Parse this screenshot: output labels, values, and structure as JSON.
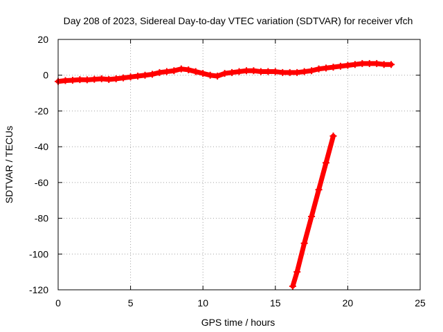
{
  "chart_data": {
    "type": "scatter",
    "title": "Day 208 of 2023, Sidereal Day-to-day VTEC variation (SDTVAR) for receiver vfch",
    "xlabel": "GPS time / hours",
    "ylabel": "SDTVAR / TECUs",
    "xlim": [
      0,
      25
    ],
    "ylim": [
      -120,
      20
    ],
    "xticks": [
      0,
      5,
      10,
      15,
      20,
      25
    ],
    "yticks": [
      -120,
      -100,
      -80,
      -60,
      -40,
      -20,
      0,
      20
    ],
    "xtick_labels": [
      "0",
      "5",
      "10",
      "15",
      "20",
      "25"
    ],
    "ytick_labels": [
      "-120",
      "-100",
      "-80",
      "-60",
      "-40",
      "-20",
      "0",
      "20"
    ],
    "grid": true,
    "legend": "none",
    "marker": "plus",
    "color": "#ff0000",
    "series": [
      {
        "x": [
          0.0,
          0.5,
          1.0,
          1.5,
          2.0,
          2.5,
          3.0,
          3.5,
          4.0,
          4.5,
          5.0,
          5.5,
          6.0,
          6.5,
          7.0,
          7.5,
          8.0,
          8.5,
          9.0,
          9.5,
          10.0,
          10.5,
          11.0,
          11.5,
          12.0,
          12.5,
          13.0,
          13.5,
          14.0,
          14.5,
          15.0,
          15.5,
          16.0,
          16.5,
          17.0,
          17.5,
          18.0,
          18.5,
          19.0,
          19.5,
          20.0,
          20.5,
          21.0,
          21.5,
          22.0,
          22.5,
          23.0
        ],
        "y": [
          -3.5,
          -3.0,
          -2.8,
          -2.5,
          -2.6,
          -2.3,
          -2.0,
          -2.4,
          -2.0,
          -1.5,
          -1.0,
          -0.5,
          0.0,
          0.5,
          1.5,
          2.0,
          2.5,
          3.5,
          3.0,
          2.0,
          1.0,
          0.0,
          -0.5,
          1.0,
          1.5,
          2.0,
          2.5,
          2.5,
          2.0,
          2.0,
          2.0,
          1.5,
          1.5,
          1.5,
          2.0,
          2.5,
          3.5,
          4.0,
          4.5,
          5.0,
          5.5,
          6.0,
          6.5,
          6.5,
          6.5,
          6.0,
          6.0
        ]
      },
      {
        "x": [
          16.2,
          16.5,
          17.0,
          17.5,
          18.0,
          18.5,
          19.0
        ],
        "y": [
          -118,
          -110,
          -94,
          -79,
          -64,
          -49,
          -34
        ]
      }
    ]
  }
}
